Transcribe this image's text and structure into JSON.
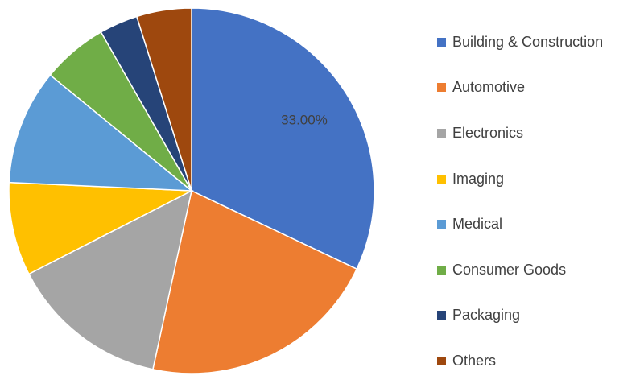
{
  "chart_data": {
    "type": "pie",
    "series": [
      {
        "name": "Building & Construction",
        "value": 33.0,
        "color": "#4472C4"
      },
      {
        "name": "Automotive",
        "value": 22.0,
        "color": "#ED7D31"
      },
      {
        "name": "Electronics",
        "value": 14.5,
        "color": "#A5A5A5"
      },
      {
        "name": "Imaging",
        "value": 8.5,
        "color": "#FFC000"
      },
      {
        "name": "Medical",
        "value": 10.5,
        "color": "#5B9BD5"
      },
      {
        "name": "Consumer Goods",
        "value": 6.0,
        "color": "#70AD47"
      },
      {
        "name": "Packaging",
        "value": 3.5,
        "color": "#264478"
      },
      {
        "name": "Others",
        "value": 5.0,
        "color": "#9E480E"
      }
    ],
    "data_labels": [
      {
        "series": "Building & Construction",
        "text": "33.00%"
      }
    ],
    "legend_position": "right",
    "start": "12 o'clock, clockwise"
  }
}
